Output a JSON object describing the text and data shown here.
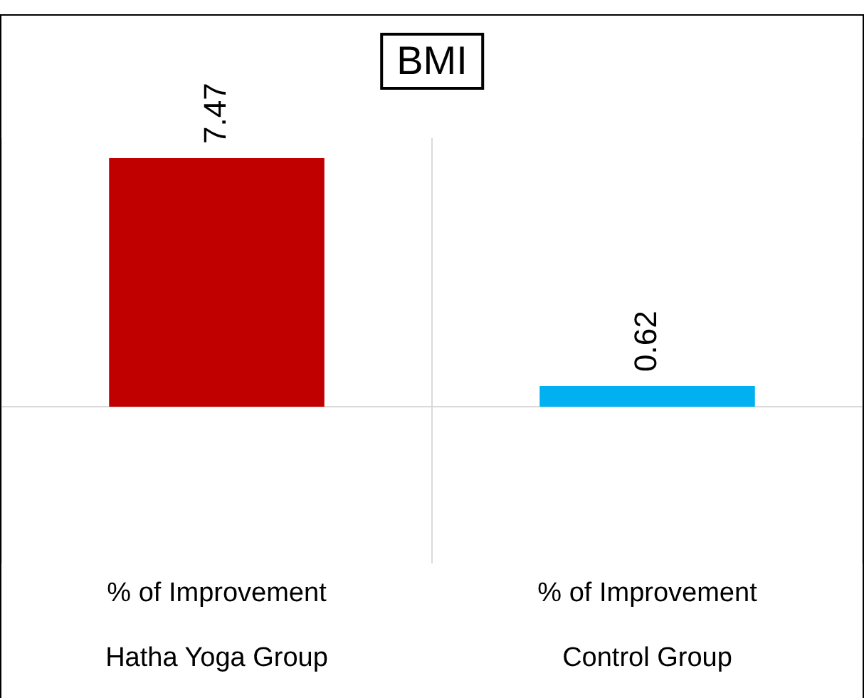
{
  "chart_data": {
    "type": "bar",
    "title": "BMI",
    "categories": [
      "Hatha Yoga Group",
      "Control Group"
    ],
    "series": [
      {
        "name": "% of Improvement",
        "colors": [
          "#c00000",
          "#00b0f0"
        ],
        "values": [
          7.47,
          0.62
        ]
      }
    ],
    "data_labels": true,
    "grid": "x",
    "legend": false
  }
}
